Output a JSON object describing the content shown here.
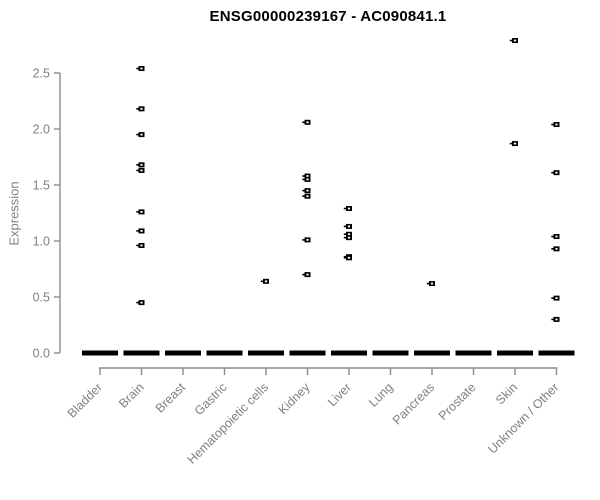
{
  "page": {
    "background": "#ffffff"
  },
  "chart_data": {
    "type": "scatter",
    "subtype": "strip-plot",
    "title": "ENSG00000239167 - AC090841.1",
    "xlabel": "",
    "ylabel": "Expression",
    "ylim": [
      0.0,
      2.5
    ],
    "yticks": [
      0.0,
      0.5,
      1.0,
      1.5,
      2.0,
      2.5
    ],
    "grid": "off",
    "legend": "none",
    "x_tick_rotation_deg": 45,
    "categories": [
      "Bladder",
      "Brain",
      "Breast",
      "Gastric",
      "Hematopoietic cells",
      "Kidney",
      "Liver",
      "Lung",
      "Pancreas",
      "Prostate",
      "Skin",
      "Unknown / Other"
    ],
    "series": [
      {
        "category": "Bladder",
        "zeros_bar": true,
        "points": []
      },
      {
        "category": "Brain",
        "zeros_bar": true,
        "points": [
          2.54,
          2.18,
          1.95,
          1.68,
          1.63,
          1.26,
          1.09,
          0.96,
          0.45
        ]
      },
      {
        "category": "Breast",
        "zeros_bar": true,
        "points": []
      },
      {
        "category": "Gastric",
        "zeros_bar": true,
        "points": []
      },
      {
        "category": "Hematopoietic cells",
        "zeros_bar": true,
        "points": [
          0.64
        ]
      },
      {
        "category": "Kidney",
        "zeros_bar": true,
        "points": [
          2.06,
          1.58,
          1.55,
          1.45,
          1.4,
          1.01,
          0.7
        ]
      },
      {
        "category": "Liver",
        "zeros_bar": true,
        "points": [
          1.29,
          1.13,
          1.06,
          1.03,
          0.86,
          0.85
        ]
      },
      {
        "category": "Lung",
        "zeros_bar": true,
        "points": []
      },
      {
        "category": "Pancreas",
        "zeros_bar": true,
        "points": [
          0.62
        ]
      },
      {
        "category": "Prostate",
        "zeros_bar": true,
        "points": []
      },
      {
        "category": "Skin",
        "zeros_bar": true,
        "points": [
          2.79,
          1.87
        ]
      },
      {
        "category": "Unknown / Other",
        "zeros_bar": true,
        "points": [
          2.04,
          1.61,
          1.04,
          0.93,
          0.49,
          0.3
        ]
      }
    ],
    "style": {
      "point_color": "#000000",
      "zero_bar_color": "#000000",
      "axis_color": "#8c8c8c",
      "tick_label_color": "#808080",
      "title_color": "#000000"
    }
  }
}
